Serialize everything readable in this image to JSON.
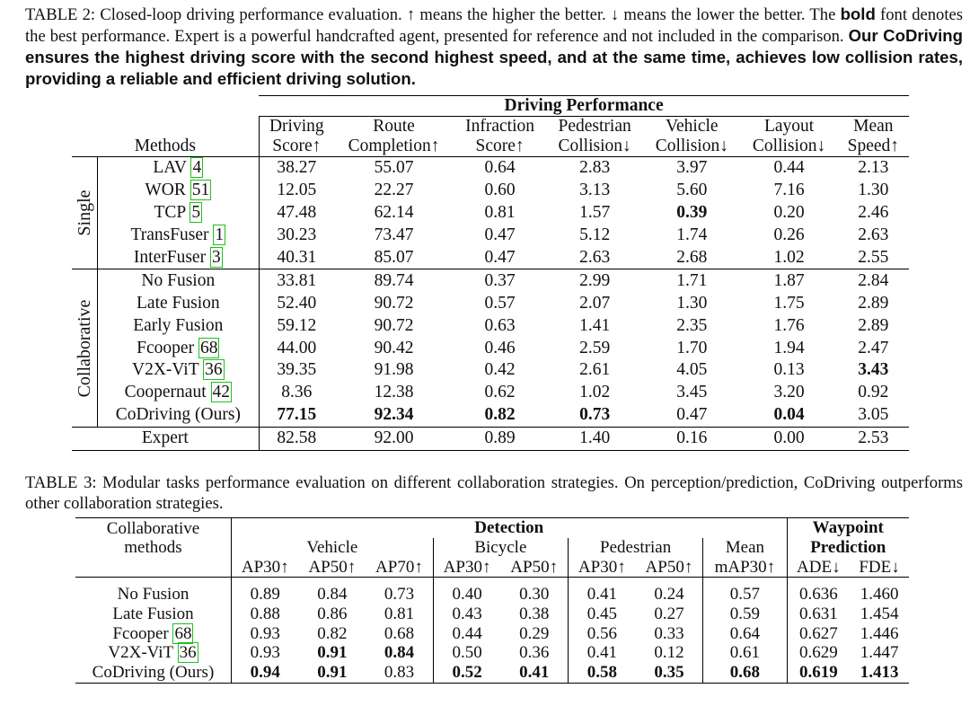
{
  "table2": {
    "caption_label": "TABLE 2:",
    "caption_text_1": " Closed-loop driving performance evaluation. ↑ means the higher the better. ↓ means the lower the better. The ",
    "caption_bold_word": "bold",
    "caption_text_2": " font denotes the best performance. Expert is a powerful handcrafted agent, presented for reference and not included in the comparison. ",
    "caption_bold_sentence": "Our CoDriving ensures the highest driving score with the second highest speed, and at the same time, achieves low collision rates, providing a reliable and efficient driving solution.",
    "section_title": "Driving Performance",
    "methods_header": "Methods",
    "columns": [
      {
        "line1": "Driving",
        "line2": "Score↑"
      },
      {
        "line1": "Route",
        "line2": "Completion↑"
      },
      {
        "line1": "Infraction",
        "line2": "Score↑"
      },
      {
        "line1": "Pedestrian",
        "line2": "Collision↓"
      },
      {
        "line1": "Vehicle",
        "line2": "Collision↓"
      },
      {
        "line1": "Layout",
        "line2": "Collision↓"
      },
      {
        "line1": "Mean",
        "line2": "Speed↑"
      }
    ],
    "group_single": "Single",
    "group_collaborative": "Collaborative",
    "rows": [
      {
        "name": "LAV ",
        "cite": "4",
        "values": [
          "38.27",
          "55.07",
          "0.64",
          "2.83",
          "3.97",
          "0.44",
          "2.13"
        ]
      },
      {
        "name": "WOR ",
        "cite": "51",
        "values": [
          "12.05",
          "22.27",
          "0.60",
          "3.13",
          "5.60",
          "7.16",
          "1.30"
        ]
      },
      {
        "name": "TCP ",
        "cite": "5",
        "values": [
          "47.48",
          "62.14",
          "0.81",
          "1.57",
          "0.39",
          "0.20",
          "2.46"
        ]
      },
      {
        "name": "TransFuser ",
        "cite": "1",
        "values": [
          "30.23",
          "73.47",
          "0.47",
          "5.12",
          "1.74",
          "0.26",
          "2.63"
        ]
      },
      {
        "name": "InterFuser ",
        "cite": "3",
        "values": [
          "40.31",
          "85.07",
          "0.47",
          "2.63",
          "2.68",
          "1.02",
          "2.55"
        ]
      },
      {
        "name": "No Fusion",
        "cite": "",
        "values": [
          "33.81",
          "89.74",
          "0.37",
          "2.99",
          "1.71",
          "1.87",
          "2.84"
        ]
      },
      {
        "name": "Late Fusion",
        "cite": "",
        "values": [
          "52.40",
          "90.72",
          "0.57",
          "2.07",
          "1.30",
          "1.75",
          "2.89"
        ]
      },
      {
        "name": "Early Fusion",
        "cite": "",
        "values": [
          "59.12",
          "90.72",
          "0.63",
          "1.41",
          "2.35",
          "1.76",
          "2.89"
        ]
      },
      {
        "name": "Fcooper ",
        "cite": "68",
        "values": [
          "44.00",
          "90.42",
          "0.46",
          "2.59",
          "1.70",
          "1.94",
          "2.47"
        ]
      },
      {
        "name": "V2X-ViT ",
        "cite": "36",
        "values": [
          "39.35",
          "91.98",
          "0.42",
          "2.61",
          "4.05",
          "0.13",
          "3.43"
        ]
      },
      {
        "name": "Coopernaut ",
        "cite": "42",
        "values": [
          "8.36",
          "12.38",
          "0.62",
          "1.02",
          "3.45",
          "3.20",
          "0.92"
        ]
      },
      {
        "name": "CoDriving (Ours)",
        "cite": "",
        "values": [
          "77.15",
          "92.34",
          "0.82",
          "0.73",
          "0.47",
          "0.04",
          "3.05"
        ]
      },
      {
        "name": "Expert",
        "cite": "",
        "values": [
          "82.58",
          "92.00",
          "0.89",
          "1.40",
          "0.16",
          "0.00",
          "2.53"
        ]
      }
    ]
  },
  "table3": {
    "caption_label": "TABLE 3:",
    "caption_text": " Modular tasks performance evaluation on different collaboration strategies. On perception/prediction, CoDriving outperforms other collaboration strategies.",
    "methods_line1": "Collaborative",
    "methods_line2": "methods",
    "detection_title": "Detection",
    "waypoint_line1": "Waypoint",
    "waypoint_line2": "Prediction",
    "groups": {
      "vehicle": "Vehicle",
      "bicycle": "Bicycle",
      "pedestrian": "Pedestrian",
      "mean": "Mean"
    },
    "subcolumns": [
      "AP30↑",
      "AP50↑",
      "AP70↑",
      "AP30↑",
      "AP50↑",
      "AP30↑",
      "AP50↑",
      "mAP30↑",
      "ADE↓",
      "FDE↓"
    ],
    "rows": [
      {
        "name": "No Fusion",
        "cite": "",
        "values": [
          "0.89",
          "0.84",
          "0.73",
          "0.40",
          "0.30",
          "0.41",
          "0.24",
          "0.57",
          "0.636",
          "1.460"
        ]
      },
      {
        "name": "Late Fusion",
        "cite": "",
        "values": [
          "0.88",
          "0.86",
          "0.81",
          "0.43",
          "0.38",
          "0.45",
          "0.27",
          "0.59",
          "0.631",
          "1.454"
        ]
      },
      {
        "name": "Fcooper ",
        "cite": "68",
        "values": [
          "0.93",
          "0.82",
          "0.68",
          "0.44",
          "0.29",
          "0.56",
          "0.33",
          "0.64",
          "0.627",
          "1.446"
        ]
      },
      {
        "name": "V2X-ViT ",
        "cite": "36",
        "values": [
          "0.93",
          "0.91",
          "0.84",
          "0.50",
          "0.36",
          "0.41",
          "0.12",
          "0.61",
          "0.629",
          "1.447"
        ]
      },
      {
        "name": "CoDriving (Ours)",
        "cite": "",
        "values": [
          "0.94",
          "0.91",
          "0.83",
          "0.52",
          "0.41",
          "0.58",
          "0.35",
          "0.68",
          "0.619",
          "1.413"
        ]
      }
    ]
  },
  "colors": {
    "citation_box": "#1fbf1f",
    "text": "#111111",
    "rule": "#000000"
  }
}
